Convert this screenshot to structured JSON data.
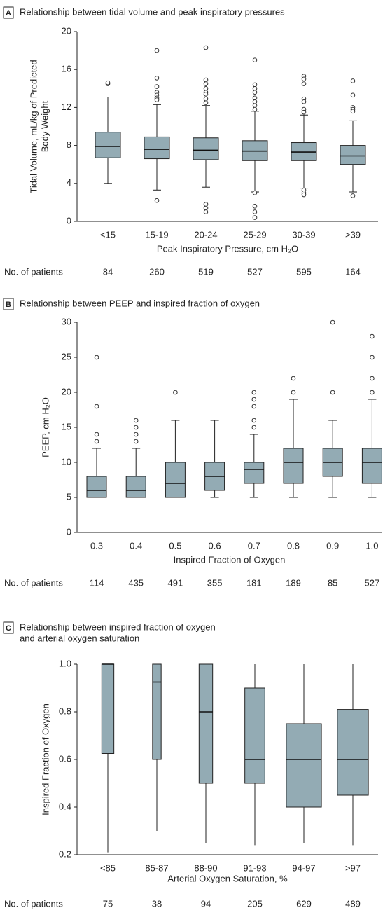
{
  "chart_data": [
    {
      "type": "box",
      "panel": "A",
      "title": [
        "Relationship between tidal volume and peak inspiratory pressures"
      ],
      "y_label": [
        "Tidal Volume, mL/kg of Predicted",
        "Body Weight"
      ],
      "x_label": "Peak Inspiratory Pressure, cm H₂O",
      "categories": [
        "<15",
        "15-19",
        "20-24",
        "25-29",
        "30-39",
        ">39"
      ],
      "ylim": [
        0,
        20
      ],
      "yticks": [
        0,
        4,
        8,
        12,
        16,
        20
      ],
      "color": "#93abb4",
      "caps": true,
      "varwidth": false,
      "boxes": [
        {
          "low": 4.0,
          "q1": 6.7,
          "median": 7.9,
          "q3": 9.4,
          "high": 13.1,
          "outliers": [
            14.5,
            14.6
          ]
        },
        {
          "low": 3.3,
          "q1": 6.6,
          "median": 7.6,
          "q3": 8.9,
          "high": 12.3,
          "outliers": [
            18.0,
            15.1,
            14.2,
            13.6,
            13.3,
            13.0,
            12.8,
            2.2
          ]
        },
        {
          "low": 3.6,
          "q1": 6.5,
          "median": 7.5,
          "q3": 8.8,
          "high": 12.2,
          "outliers": [
            18.3,
            14.9,
            14.5,
            14.0,
            13.6,
            13.4,
            12.9,
            12.5,
            1.8,
            1.4,
            1.0
          ]
        },
        {
          "low": 3.1,
          "q1": 6.4,
          "median": 7.4,
          "q3": 8.5,
          "high": 11.6,
          "outliers": [
            17.0,
            14.4,
            14.0,
            13.6,
            13.0,
            12.6,
            12.2,
            11.8,
            3.0,
            1.6,
            1.0,
            0.4
          ]
        },
        {
          "low": 3.5,
          "q1": 6.4,
          "median": 7.3,
          "q3": 8.3,
          "high": 11.2,
          "outliers": [
            15.3,
            15.0,
            14.5,
            12.9,
            12.6,
            11.8,
            11.5,
            3.3,
            3.0,
            2.8
          ]
        },
        {
          "low": 3.1,
          "q1": 6.0,
          "median": 6.9,
          "q3": 8.0,
          "high": 10.6,
          "outliers": [
            14.8,
            13.3,
            12.0,
            11.8,
            11.6,
            2.7
          ]
        }
      ],
      "counts_label": "No. of patients",
      "counts": [
        84,
        260,
        519,
        527,
        595,
        164
      ]
    },
    {
      "type": "box",
      "panel": "B",
      "title": [
        "Relationship between PEEP and inspired fraction of oxygen"
      ],
      "y_label": [
        "PEEP, cm H₂O"
      ],
      "x_label": "Inspired Fraction of Oxygen",
      "categories": [
        "0.3",
        "0.4",
        "0.5",
        "0.6",
        "0.7",
        "0.8",
        "0.9",
        "1.0"
      ],
      "ylim": [
        0,
        30
      ],
      "yticks": [
        0,
        5,
        10,
        15,
        20,
        25,
        30
      ],
      "color": "#93abb4",
      "caps": true,
      "varwidth": false,
      "boxes": [
        {
          "low": 5,
          "q1": 5,
          "median": 6,
          "q3": 8,
          "high": 12,
          "outliers": [
            25,
            18,
            14,
            13
          ]
        },
        {
          "low": 5,
          "q1": 5,
          "median": 6,
          "q3": 8,
          "high": 12,
          "outliers": [
            16,
            15,
            14,
            13
          ]
        },
        {
          "low": 5,
          "q1": 5,
          "median": 7,
          "q3": 10,
          "high": 16,
          "outliers": [
            20
          ]
        },
        {
          "low": 5,
          "q1": 6,
          "median": 8,
          "q3": 10,
          "high": 16,
          "outliers": []
        },
        {
          "low": 5,
          "q1": 7,
          "median": 9,
          "q3": 10,
          "high": 14,
          "outliers": [
            20,
            19,
            18,
            16,
            15
          ]
        },
        {
          "low": 5,
          "q1": 7,
          "median": 10,
          "q3": 12,
          "high": 19,
          "outliers": [
            22,
            20
          ]
        },
        {
          "low": 5,
          "q1": 8,
          "median": 10,
          "q3": 12,
          "high": 16,
          "outliers": [
            30,
            20
          ]
        },
        {
          "low": 5,
          "q1": 7,
          "median": 10,
          "q3": 12,
          "high": 19,
          "outliers": [
            28,
            25,
            22,
            20
          ]
        }
      ],
      "counts_label": "No. of patients",
      "counts": [
        114,
        435,
        491,
        355,
        181,
        189,
        85,
        527
      ]
    },
    {
      "type": "box",
      "panel": "C",
      "title": [
        "Relationship between inspired fraction of oxygen",
        "and arterial oxygen saturation"
      ],
      "y_label": [
        "Inspired Fraction of Oxygen"
      ],
      "x_label": "Arterial Oxygen Saturation, %",
      "categories": [
        "<85",
        "85-87",
        "88-90",
        "91-93",
        "94-97",
        ">97"
      ],
      "ylim": [
        0.2,
        1
      ],
      "yticks": [
        0.2,
        0.4,
        0.6,
        0.8,
        {
          "value": 1,
          "label": "1.0"
        }
      ],
      "color": "#93abb4",
      "caps": false,
      "varwidth": true,
      "boxes": [
        {
          "low": 0.21,
          "q1": 0.625,
          "median": 1.0,
          "q3": 1.0,
          "high": 1.0,
          "outliers": []
        },
        {
          "low": 0.3,
          "q1": 0.6,
          "median": 0.925,
          "q3": 1.0,
          "high": 1.0,
          "outliers": []
        },
        {
          "low": 0.25,
          "q1": 0.5,
          "median": 0.8,
          "q3": 1.0,
          "high": 1.0,
          "outliers": []
        },
        {
          "low": 0.24,
          "q1": 0.5,
          "median": 0.6,
          "q3": 0.9,
          "high": 1.0,
          "outliers": []
        },
        {
          "low": 0.25,
          "q1": 0.4,
          "median": 0.6,
          "q3": 0.75,
          "high": 1.0,
          "outliers": []
        },
        {
          "low": 0.24,
          "q1": 0.45,
          "median": 0.6,
          "q3": 0.81,
          "high": 1.0,
          "outliers": []
        }
      ],
      "counts_label": "No. of patients",
      "counts": [
        75,
        38,
        94,
        205,
        629,
        489
      ]
    }
  ]
}
